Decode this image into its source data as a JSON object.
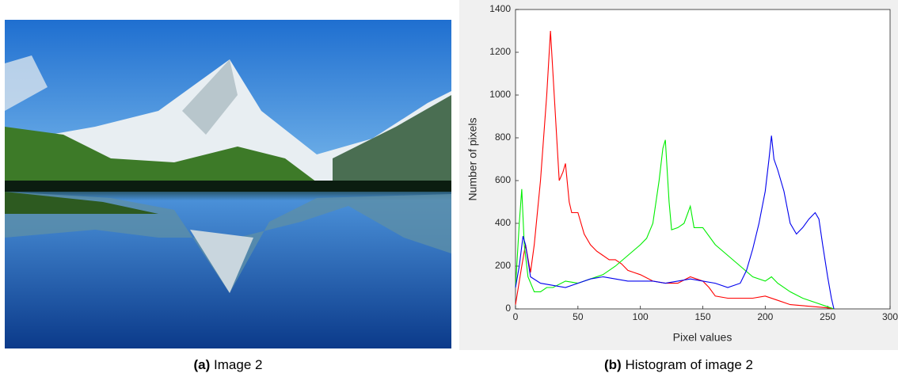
{
  "captions": [
    {
      "label": "(a)",
      "text": "Image 2"
    },
    {
      "label": "(b)",
      "text": "Histogram of image 2"
    }
  ],
  "chart_data": {
    "type": "line",
    "x_label": "Pixel values",
    "y_label": "Number of pixels",
    "xlim": [
      0,
      300
    ],
    "xticks": [
      0,
      50,
      100,
      150,
      200,
      250,
      300
    ],
    "ylim": [
      0,
      1400
    ],
    "yticks": [
      0,
      200,
      400,
      600,
      800,
      1000,
      1200,
      1400
    ],
    "series": [
      {
        "color": "#ff0000",
        "x": [
          0,
          5,
          8,
          12,
          15,
          20,
          25,
          28,
          30,
          35,
          38,
          40,
          43,
          45,
          50,
          55,
          60,
          65,
          70,
          75,
          80,
          85,
          90,
          95,
          100,
          110,
          120,
          130,
          140,
          150,
          155,
          160,
          170,
          180,
          190,
          200,
          210,
          220,
          230,
          240,
          250,
          255
        ],
        "values": [
          20,
          200,
          300,
          170,
          300,
          600,
          1000,
          1300,
          1100,
          600,
          640,
          680,
          500,
          450,
          450,
          350,
          300,
          270,
          250,
          230,
          230,
          210,
          180,
          170,
          160,
          130,
          120,
          120,
          150,
          130,
          100,
          60,
          50,
          50,
          50,
          60,
          40,
          20,
          15,
          10,
          5,
          0
        ]
      },
      {
        "color": "#00ee00",
        "x": [
          0,
          3,
          5,
          7,
          10,
          15,
          20,
          25,
          30,
          40,
          50,
          60,
          70,
          80,
          90,
          100,
          105,
          110,
          115,
          118,
          120,
          123,
          125,
          130,
          135,
          140,
          143,
          150,
          160,
          170,
          180,
          190,
          200,
          205,
          210,
          220,
          230,
          240,
          250,
          255
        ],
        "values": [
          100,
          400,
          560,
          300,
          150,
          80,
          80,
          100,
          100,
          130,
          120,
          140,
          160,
          200,
          250,
          300,
          330,
          400,
          600,
          750,
          790,
          500,
          370,
          380,
          400,
          480,
          380,
          380,
          300,
          250,
          200,
          150,
          130,
          150,
          120,
          80,
          50,
          30,
          10,
          0
        ]
      },
      {
        "color": "#0000ee",
        "x": [
          0,
          3,
          6,
          8,
          12,
          20,
          30,
          40,
          50,
          60,
          70,
          80,
          90,
          100,
          110,
          120,
          130,
          140,
          150,
          160,
          170,
          180,
          185,
          190,
          195,
          200,
          203,
          205,
          207,
          210,
          215,
          220,
          225,
          230,
          235,
          240,
          243,
          246,
          250,
          253,
          255
        ],
        "values": [
          100,
          200,
          340,
          300,
          150,
          120,
          110,
          100,
          120,
          140,
          150,
          140,
          130,
          130,
          130,
          120,
          130,
          140,
          130,
          120,
          100,
          120,
          180,
          280,
          400,
          550,
          700,
          810,
          700,
          650,
          550,
          400,
          350,
          380,
          420,
          450,
          420,
          300,
          150,
          50,
          0
        ]
      }
    ]
  }
}
